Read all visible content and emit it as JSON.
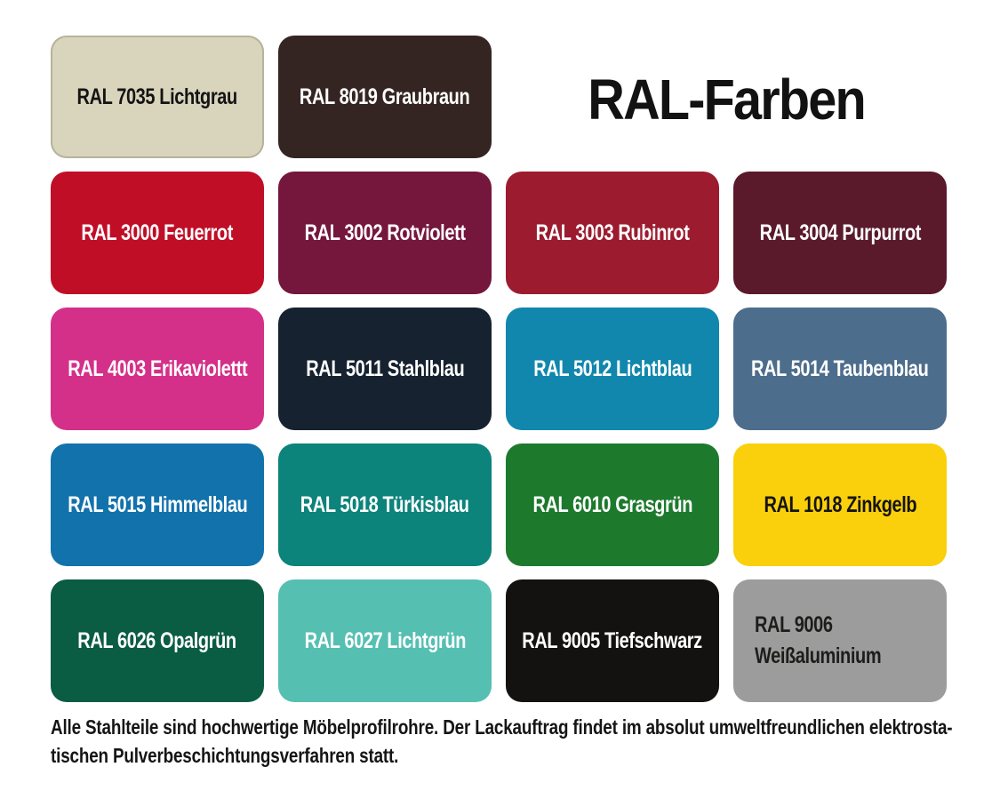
{
  "title": "RAL-Farben",
  "swatches": [
    {
      "ral": "7035",
      "label": "RAL 7035 Lichtgrau",
      "bg": "#d9d4bc",
      "fg": "#141414",
      "border": "#b7b29c"
    },
    {
      "ral": "8019",
      "label": "RAL 8019 Graubraun",
      "bg": "#342523",
      "fg": "#ffffff"
    },
    {
      "ral": "3000",
      "label": "RAL 3000 Feuerrot",
      "bg": "#c00e27",
      "fg": "#ffffff"
    },
    {
      "ral": "3002",
      "label": "RAL 3002 Rotviolett",
      "bg": "#75163c",
      "fg": "#ffffff"
    },
    {
      "ral": "3003",
      "label": "RAL 3003 Rubinrot",
      "bg": "#9c1b2e",
      "fg": "#ffffff"
    },
    {
      "ral": "3004",
      "label": "RAL 3004 Purpurrot",
      "bg": "#5a1a2c",
      "fg": "#ffffff"
    },
    {
      "ral": "4003",
      "label": "RAL 4003 Erikaviolettt",
      "bg": "#d43089",
      "fg": "#ffffff"
    },
    {
      "ral": "5011",
      "label": "RAL 5011 Stahlblau",
      "bg": "#16222f",
      "fg": "#ffffff"
    },
    {
      "ral": "5012",
      "label": "RAL 5012 Lichtblau",
      "bg": "#1287ad",
      "fg": "#ffffff"
    },
    {
      "ral": "5014",
      "label": "RAL 5014 Taubenblau",
      "bg": "#4d6d8c",
      "fg": "#ffffff"
    },
    {
      "ral": "5015",
      "label": "RAL 5015 Himmelblau",
      "bg": "#1272ac",
      "fg": "#ffffff"
    },
    {
      "ral": "5018",
      "label": "RAL 5018 Türkisblau",
      "bg": "#0c837b",
      "fg": "#ffffff"
    },
    {
      "ral": "6010",
      "label": "RAL 6010 Grasgrün",
      "bg": "#1d7a2d",
      "fg": "#ffffff"
    },
    {
      "ral": "1018",
      "label": "RAL 1018 Zinkgelb",
      "bg": "#f9d00b",
      "fg": "#151310"
    },
    {
      "ral": "6026",
      "label": "RAL 6026 Opalgrün",
      "bg": "#0a5c42",
      "fg": "#ffffff"
    },
    {
      "ral": "6027",
      "label": "RAL 6027 Lichtgrün",
      "bg": "#55bfb2",
      "fg": "#ffffff"
    },
    {
      "ral": "9005",
      "label": "RAL 9005 Tiefschwarz",
      "bg": "#141211",
      "fg": "#ffffff"
    },
    {
      "ral": "9006",
      "label": "RAL 9006",
      "line2": "Weißaluminium",
      "bg": "#9b9c9b",
      "fg": "#1d1d1b"
    }
  ],
  "footer": {
    "line1": "Alle Stahlteile sind hochwertige Möbelprofilrohre. Der Lackauftrag findet im absolut umweltfreundlichen elektrosta-",
    "line2": "tischen Pulverbeschichtungsverfahren statt."
  }
}
